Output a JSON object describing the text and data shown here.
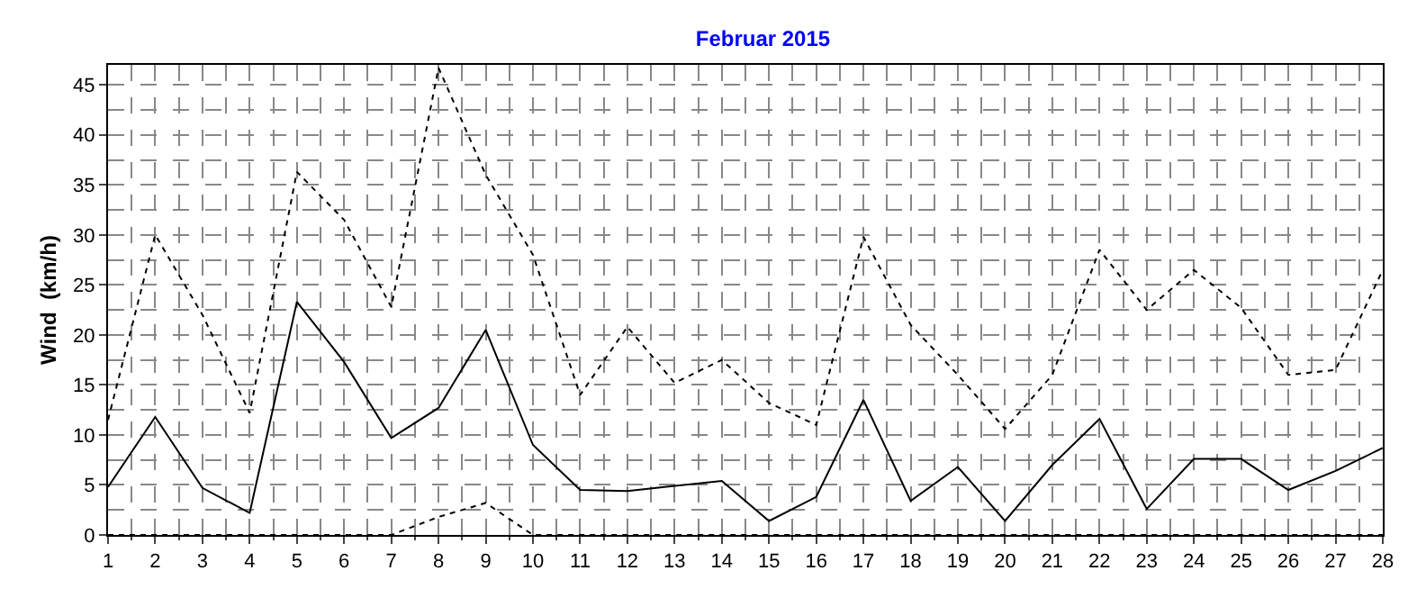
{
  "chart_data": {
    "type": "line",
    "title": "Februar 2015",
    "ylabel": "Wind  (km/h)",
    "x": [
      1,
      2,
      3,
      4,
      5,
      6,
      7,
      8,
      9,
      10,
      11,
      12,
      13,
      14,
      15,
      16,
      17,
      18,
      19,
      20,
      21,
      22,
      23,
      24,
      25,
      26,
      27,
      28
    ],
    "xlim": [
      1,
      28
    ],
    "xticks": [
      1,
      2,
      3,
      4,
      5,
      6,
      7,
      8,
      9,
      10,
      11,
      12,
      13,
      14,
      15,
      16,
      17,
      18,
      19,
      20,
      21,
      22,
      23,
      24,
      25,
      26,
      27,
      28
    ],
    "ylim": [
      0,
      47
    ],
    "yticks": [
      0,
      5,
      10,
      15,
      20,
      25,
      30,
      35,
      40,
      45
    ],
    "grid": true,
    "marker": "none",
    "series": [
      {
        "color": "#000000",
        "line_style": "dotted",
        "values": [
          11.5,
          30,
          22,
          12.2,
          36.3,
          31.5,
          22.8,
          46.7,
          36,
          28,
          14,
          20.8,
          15.2,
          17.5,
          13.2,
          11,
          29.8,
          21,
          16,
          10.6,
          16,
          28.5,
          22.5,
          26.5,
          22.7,
          16,
          16.5,
          26.5
        ]
      },
      {
        "color": "#000000",
        "line_style": "solid",
        "values": [
          4.8,
          11.8,
          4.7,
          2.2,
          23.3,
          17.3,
          9.7,
          12.7,
          20.5,
          9,
          4.5,
          4.4,
          4.9,
          5.4,
          1.4,
          3.8,
          13.5,
          3.4,
          6.8,
          1.4,
          7,
          11.6,
          2.6,
          7.6,
          7.6,
          4.5,
          6.4,
          8.7
        ]
      },
      {
        "color": "#000000",
        "line_style": "dotted",
        "values": [
          0,
          0,
          0,
          0,
          0,
          0,
          0,
          1.8,
          3.2,
          0,
          0,
          0,
          0,
          0,
          0,
          0,
          0,
          0,
          0,
          0,
          0,
          0,
          0,
          0,
          0,
          0,
          0,
          0
        ]
      }
    ]
  }
}
